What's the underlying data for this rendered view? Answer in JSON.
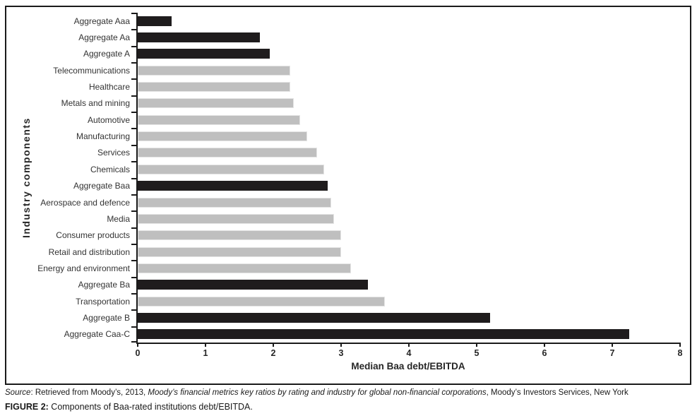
{
  "figure": {
    "caption_prefix": "FIGURE 2:",
    "caption_text": " Components of Baa-rated institutions debt/EBITDA.",
    "source_segments": [
      {
        "text": "Source",
        "italic": true
      },
      {
        "text": ": Retrieved from Moody’s, 2013, ",
        "italic": false
      },
      {
        "text": "Moody’s financial metrics key ratios by rating and industry for global non-financial corporations",
        "italic": true
      },
      {
        "text": ", Moody’s Investors Services, New York",
        "italic": false
      }
    ]
  },
  "chart_data": {
    "type": "bar",
    "orientation": "horizontal",
    "title": "",
    "xlabel": "Median Baa debt/EBITDA",
    "ylabel": "Industry components",
    "xlim": [
      0,
      8
    ],
    "xticks": [
      0,
      1,
      2,
      3,
      4,
      5,
      6,
      7,
      8
    ],
    "grid": false,
    "legend": false,
    "categories": [
      "Aggregate Aaa",
      "Aggregate Aa",
      "Aggregate A",
      "Telecommunications",
      "Healthcare",
      "Metals and mining",
      "Automotive",
      "Manufacturing",
      "Services",
      "Chemicals",
      "Aggregate Baa",
      "Aerospace and defence",
      "Media",
      "Consumer products",
      "Retail and distribution",
      "Energy and environment",
      "Aggregate Ba",
      "Transportation",
      "Aggregate B",
      "Aggregate Caa-C"
    ],
    "values": [
      0.5,
      1.8,
      1.95,
      2.25,
      2.25,
      2.3,
      2.4,
      2.5,
      2.65,
      2.75,
      2.8,
      2.85,
      2.9,
      3.0,
      3.0,
      3.15,
      3.4,
      3.65,
      5.2,
      7.25
    ],
    "bar_styles": [
      "black",
      "black",
      "black",
      "gray",
      "gray",
      "gray",
      "gray",
      "gray",
      "gray",
      "gray",
      "black",
      "gray",
      "gray",
      "gray",
      "gray",
      "gray",
      "black",
      "gray",
      "black",
      "black"
    ],
    "style_colors": {
      "black": "#1f1c1d",
      "gray": "#bfbfbf"
    }
  }
}
